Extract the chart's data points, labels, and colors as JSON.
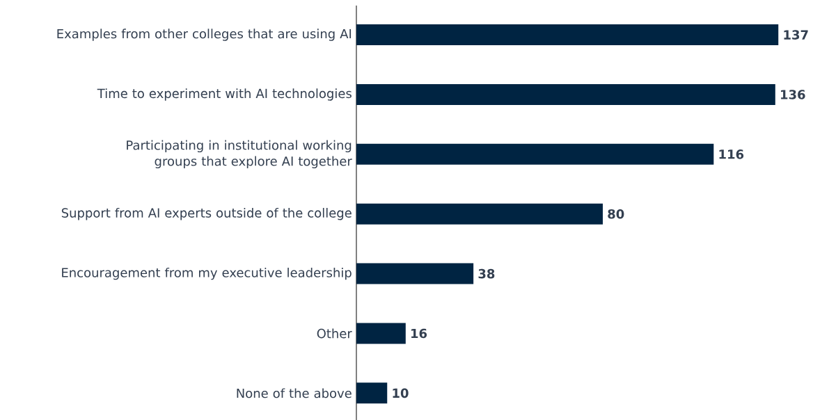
{
  "chart_data": {
    "type": "bar",
    "orientation": "horizontal",
    "data_labels": true,
    "color": "#002442",
    "categories": [
      "Examples from other colleges that are using AI",
      "Time to experiment with AI technologies",
      "Participating in institutional working groups that explore AI together",
      "Support from AI experts outside of the college",
      "Encouragement from my executive leadership",
      "Other",
      "None of the above"
    ],
    "values": [
      137,
      136,
      116,
      80,
      38,
      16,
      10
    ]
  }
}
